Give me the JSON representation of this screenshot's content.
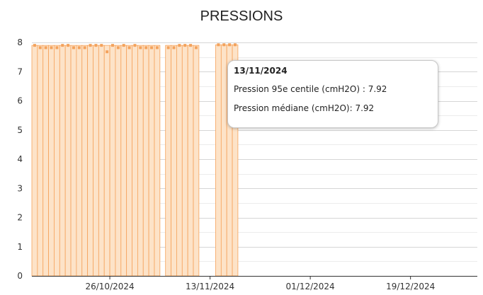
{
  "chart_data": {
    "type": "bar",
    "title": "PRESSIONS",
    "ylim": [
      0,
      8
    ],
    "y_ticks": [
      "0",
      "1",
      "2",
      "3",
      "4",
      "5",
      "6",
      "7",
      "8"
    ],
    "x_tick_labels": [
      "26/10/2024",
      "13/11/2024",
      "01/12/2024",
      "19/12/2024"
    ],
    "x_tick_dates": [
      "2024-10-26",
      "2024-11-13",
      "2024-12-01",
      "2024-12-19"
    ],
    "xlim": [
      "2024-10-12",
      "2024-12-31"
    ],
    "grid": true,
    "colors": {
      "bar_fill": "#fde3c8",
      "bar_stroke": "#f5a25b",
      "marker": "#f3a25c"
    },
    "series": [
      {
        "type": "bar",
        "x": [
          "2024-10-12",
          "2024-10-13",
          "2024-10-14",
          "2024-10-15",
          "2024-10-16",
          "2024-10-17",
          "2024-10-18",
          "2024-10-19",
          "2024-10-20",
          "2024-10-21",
          "2024-10-22",
          "2024-10-23",
          "2024-10-24",
          "2024-10-25",
          "2024-10-26",
          "2024-10-27",
          "2024-10-28",
          "2024-10-29",
          "2024-10-30",
          "2024-10-31",
          "2024-11-01",
          "2024-11-02",
          "2024-11-03",
          "2024-11-05",
          "2024-11-06",
          "2024-11-07",
          "2024-11-08",
          "2024-11-09",
          "2024-11-10",
          "2024-11-14",
          "2024-11-15",
          "2024-11-16",
          "2024-11-17"
        ],
        "values": [
          7.9,
          7.9,
          7.9,
          7.9,
          7.9,
          7.9,
          7.9,
          7.9,
          7.9,
          7.9,
          7.9,
          7.9,
          7.9,
          7.9,
          7.9,
          7.9,
          7.9,
          7.9,
          7.9,
          7.9,
          7.9,
          7.9,
          7.9,
          7.9,
          7.9,
          7.9,
          7.9,
          7.9,
          7.9,
          7.92,
          7.92,
          7.92,
          7.92
        ]
      },
      {
        "type": "scatter",
        "x": [
          "2024-10-12",
          "2024-10-13",
          "2024-10-14",
          "2024-10-15",
          "2024-10-16",
          "2024-10-17",
          "2024-10-18",
          "2024-10-19",
          "2024-10-20",
          "2024-10-21",
          "2024-10-22",
          "2024-10-23",
          "2024-10-24",
          "2024-10-25",
          "2024-10-26",
          "2024-10-27",
          "2024-10-28",
          "2024-10-29",
          "2024-10-30",
          "2024-10-31",
          "2024-11-01",
          "2024-11-02",
          "2024-11-03",
          "2024-11-05",
          "2024-11-06",
          "2024-11-07",
          "2024-11-08",
          "2024-11-09",
          "2024-11-10",
          "2024-11-14",
          "2024-11-15",
          "2024-11-16",
          "2024-11-17"
        ],
        "values": [
          7.9,
          7.82,
          7.82,
          7.82,
          7.82,
          7.9,
          7.9,
          7.82,
          7.82,
          7.82,
          7.9,
          7.9,
          7.9,
          7.68,
          7.9,
          7.82,
          7.9,
          7.82,
          7.9,
          7.82,
          7.82,
          7.82,
          7.82,
          7.82,
          7.82,
          7.9,
          7.9,
          7.9,
          7.82,
          7.92,
          7.92,
          7.92,
          7.92
        ]
      }
    ]
  },
  "tooltip": {
    "date": "13/11/2024",
    "p95_label": "Pression 95e centile (cmH2O) : 7.92",
    "median_label": "Pression médiane (cmH2O): 7.92"
  }
}
